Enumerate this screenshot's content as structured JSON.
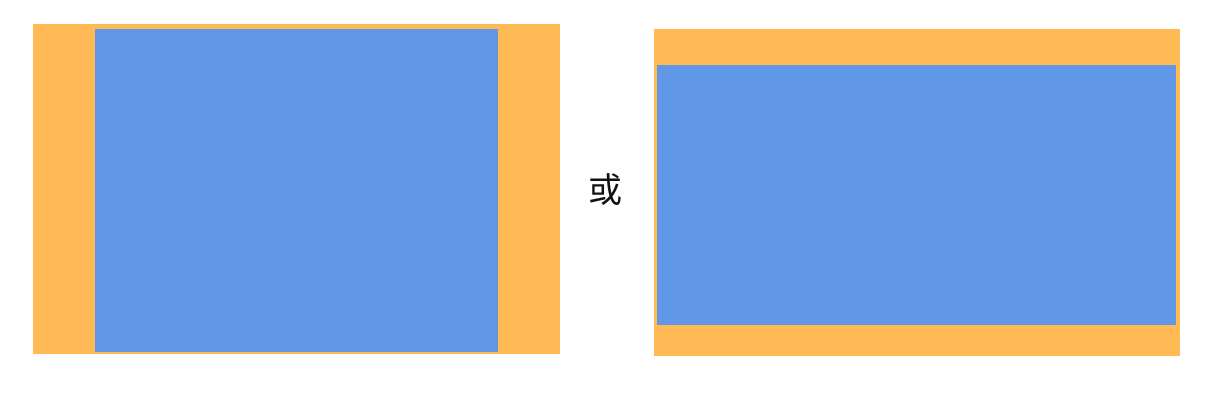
{
  "separator": {
    "text": "或"
  },
  "colors": {
    "frame": "#FFBA55",
    "content": "#6097E6",
    "background": "#FFFFFF"
  },
  "diagrams": [
    {
      "id": "pillarbox",
      "description_visible": ""
    },
    {
      "id": "letterbox",
      "description_visible": ""
    }
  ]
}
